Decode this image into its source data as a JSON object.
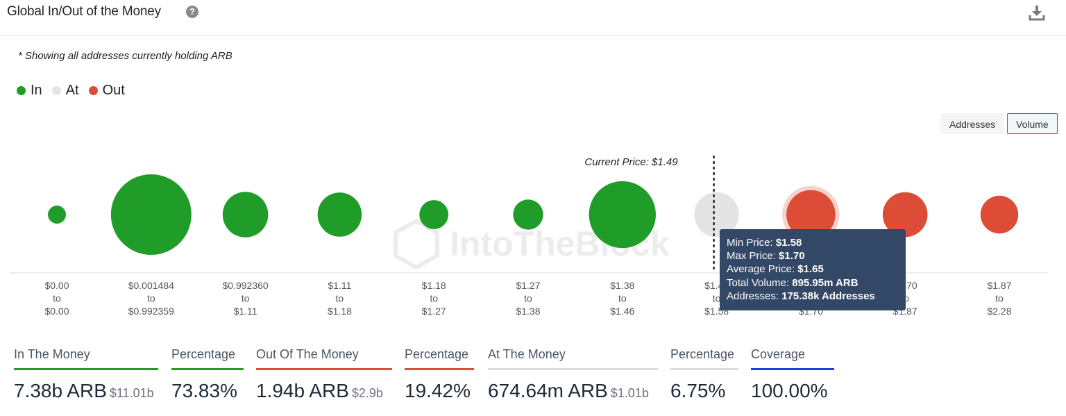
{
  "header": {
    "title": "Global In/Out of the Money",
    "help_icon": "?"
  },
  "note": "* Showing all addresses currently holding ARB",
  "legend": [
    {
      "label": "In",
      "color": "#1f9d28"
    },
    {
      "label": "At",
      "color": "#e4e4e4"
    },
    {
      "label": "Out",
      "color": "#dc4c36"
    }
  ],
  "toggles": {
    "addresses": "Addresses",
    "volume": "Volume",
    "active": "volume"
  },
  "watermark": "IntoTheBlock",
  "chart_data": {
    "type": "bubble",
    "current_price_label": "Current Price: $1.49",
    "current_price": 1.49,
    "size_metric": "volume",
    "bins": [
      {
        "from": "$0.00",
        "to": "$0.00",
        "status": "in",
        "relative_size": 0.05
      },
      {
        "from": "$0.001484",
        "to": "$0.992359",
        "status": "in",
        "relative_size": 1.0
      },
      {
        "from": "$0.992360",
        "to": "$1.11",
        "status": "in",
        "relative_size": 0.32
      },
      {
        "from": "$1.11",
        "to": "$1.18",
        "status": "in",
        "relative_size": 0.3
      },
      {
        "from": "$1.18",
        "to": "$1.27",
        "status": "in",
        "relative_size": 0.13
      },
      {
        "from": "$1.27",
        "to": "$1.38",
        "status": "in",
        "relative_size": 0.14
      },
      {
        "from": "$1.38",
        "to": "$1.46",
        "status": "in",
        "relative_size": 0.69
      },
      {
        "from": "$1.46",
        "to": "$1.58",
        "status": "at",
        "relative_size": 0.31
      },
      {
        "from": "$1.58",
        "to": "$1.70",
        "status": "out",
        "relative_size": 0.37,
        "highlighted": true
      },
      {
        "from": "$1.70",
        "to": "$1.87",
        "status": "out",
        "relative_size": 0.31
      },
      {
        "from": "$1.87",
        "to": "$2.28",
        "status": "out",
        "relative_size": 0.22
      }
    ],
    "tooltip": {
      "min_price_label": "Min Price:",
      "min_price": "$1.58",
      "max_price_label": "Max Price:",
      "max_price": "$1.70",
      "avg_price_label": "Average Price:",
      "avg_price": "$1.65",
      "total_volume_label": "Total Volume:",
      "total_volume": "895.95m ARB",
      "addresses_label": "Addresses:",
      "addresses": "175.38k Addresses"
    }
  },
  "stats": [
    {
      "label": "In The Money",
      "value": "7.38b ARB",
      "sub": "$11.01b",
      "bar_color": "#1f9d28"
    },
    {
      "label": "Percentage",
      "value": "73.83%",
      "sub": "",
      "bar_color": "#1f9d28"
    },
    {
      "label": "Out Of The Money",
      "value": "1.94b ARB",
      "sub": "$2.9b",
      "bar_color": "#dc4c36"
    },
    {
      "label": "Percentage",
      "value": "19.42%",
      "sub": "",
      "bar_color": "#dc4c36"
    },
    {
      "label": "At The Money",
      "value": "674.64m ARB",
      "sub": "$1.01b",
      "bar_color": "#dcdcdc"
    },
    {
      "label": "Percentage",
      "value": "6.75%",
      "sub": "",
      "bar_color": "#dcdcdc"
    },
    {
      "label": "Coverage",
      "value": "100.00%",
      "sub": "",
      "bar_color": "#1e3fd8"
    }
  ]
}
